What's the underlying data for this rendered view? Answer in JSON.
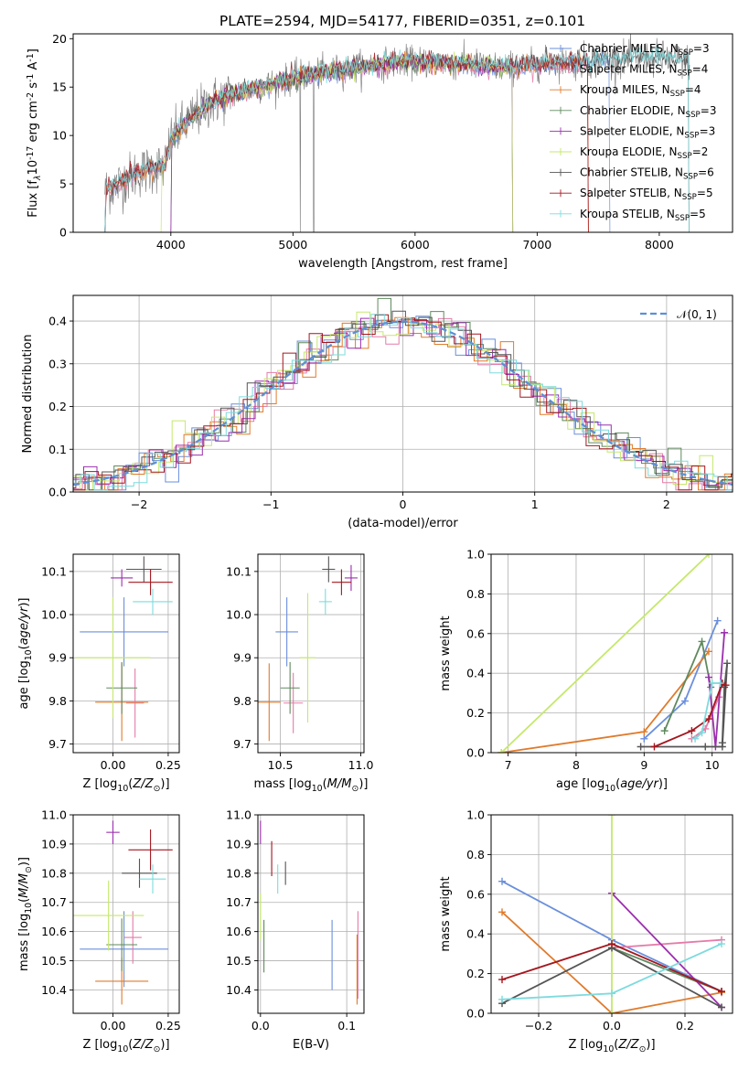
{
  "figure": {
    "title": "PLATE=2594, MJD=54177, FIBERID=0351, z=0.101"
  },
  "colors": {
    "Chabrier MILES": "#6a8fdc",
    "Salpeter MILES": "#e57ba8",
    "Kroupa MILES": "#e07b2c",
    "Chabrier ELODIE": "#5f8a5f",
    "Salpeter ELODIE": "#9b2fae",
    "Kroupa ELODIE": "#c5e86c",
    "Chabrier STELIB": "#555555",
    "Salpeter STELIB": "#a3171f",
    "Kroupa STELIB": "#7ddbde",
    "data": "#777777",
    "normal": "#5b8fd6"
  },
  "chart_data": [
    {
      "id": "spectrum",
      "type": "line",
      "xlabel": "wavelength [Angstrom, rest frame]",
      "ylabel": "Flux [f_λ10^{-17} erg cm^{-2} s^{-1} A^{-1}]",
      "xlim": [
        3200,
        8600
      ],
      "ylim": [
        0,
        20.5
      ],
      "xticks": [
        4000,
        5000,
        6000,
        7000,
        8000
      ],
      "yticks": [
        0,
        5,
        10,
        15,
        20
      ],
      "legend_position": "top-right",
      "continuum": {
        "x": [
          3460,
          3550,
          3700,
          3850,
          3950,
          4000,
          4100,
          4300,
          4500,
          4700,
          4900,
          5100,
          5300,
          5500,
          5700,
          5900,
          6100,
          6300,
          6500,
          6700,
          6900,
          7100,
          7300,
          7500,
          7700,
          7900,
          8100,
          8250
        ],
        "y": [
          4.3,
          4.8,
          6.0,
          6.6,
          6.8,
          9.5,
          11.0,
          13.2,
          14.3,
          14.9,
          15.6,
          16.2,
          16.6,
          17.0,
          17.4,
          17.6,
          17.6,
          17.4,
          17.3,
          17.0,
          17.2,
          17.5,
          17.6,
          17.8,
          17.9,
          18.0,
          17.9,
          17.6
        ]
      },
      "series": [
        {
          "name": "Chabrier MILES",
          "nssp": "3",
          "x_range": [
            3460,
            7600
          ]
        },
        {
          "name": "Salpeter MILES",
          "nssp": "4",
          "x_range": [
            3460,
            7420
          ]
        },
        {
          "name": "Kroupa MILES",
          "nssp": "4",
          "x_range": [
            3460,
            7420
          ]
        },
        {
          "name": "Chabrier ELODIE",
          "nssp": "3",
          "x_range": [
            4000,
            6800
          ]
        },
        {
          "name": "Salpeter ELODIE",
          "nssp": "3",
          "x_range": [
            4000,
            6800
          ]
        },
        {
          "name": "Kroupa ELODIE",
          "nssp": "2",
          "x_range": [
            3920,
            6800
          ]
        },
        {
          "name": "Chabrier STELIB",
          "nssp": "6",
          "x_range": [
            3460,
            8250
          ]
        },
        {
          "name": "Salpeter STELIB",
          "nssp": "5",
          "x_range": [
            3460,
            7420
          ]
        },
        {
          "name": "Kroupa STELIB",
          "nssp": "5",
          "x_range": [
            3460,
            8250
          ]
        }
      ]
    },
    {
      "id": "residuals",
      "type": "line",
      "xlabel": "(data-model)/error",
      "ylabel": "Normed distribution",
      "xlim": [
        -2.5,
        2.5
      ],
      "ylim": [
        0,
        0.46
      ],
      "xticks": [
        -2,
        -1,
        0,
        1,
        2
      ],
      "yticks": [
        0.0,
        0.1,
        0.2,
        0.3,
        0.4
      ],
      "grid": true,
      "bin_width": 0.1,
      "legend_position": "top-right",
      "legend": [
        {
          "label": "𝒩(0, 1)",
          "style": "dashed"
        }
      ]
    },
    {
      "id": "age-vs-Z",
      "type": "scatter",
      "xlabel": "Z [log10(Z/Z☉)]",
      "ylabel": "age  [log10(age/yr)]",
      "xlim": [
        -0.18,
        0.3
      ],
      "ylim": [
        9.68,
        10.14
      ],
      "xticks": [
        0.0,
        0.25
      ],
      "yticks": [
        9.7,
        9.8,
        9.9,
        10.0,
        10.1
      ],
      "grid": true,
      "points": [
        {
          "name": "Chabrier MILES",
          "x": 0.05,
          "y": 9.96,
          "xerr": 0.2,
          "yerr": 0.08
        },
        {
          "name": "Salpeter MILES",
          "x": 0.1,
          "y": 9.795,
          "xerr": 0.04,
          "yerr": 0.08
        },
        {
          "name": "Kroupa MILES",
          "x": 0.04,
          "y": 9.797,
          "xerr": 0.12,
          "yerr": 0.09
        },
        {
          "name": "Chabrier ELODIE",
          "x": 0.04,
          "y": 9.83,
          "xerr": 0.07,
          "yerr": 0.06
        },
        {
          "name": "Salpeter ELODIE",
          "x": 0.04,
          "y": 10.085,
          "xerr": 0.05,
          "yerr": 0.02
        },
        {
          "name": "Kroupa ELODIE",
          "x": 0.0,
          "y": 9.9,
          "xerr": 0.17,
          "yerr": 0.14
        },
        {
          "name": "Chabrier STELIB",
          "x": 0.14,
          "y": 10.105,
          "xerr": 0.08,
          "yerr": 0.03
        },
        {
          "name": "Salpeter STELIB",
          "x": 0.17,
          "y": 10.075,
          "xerr": 0.1,
          "yerr": 0.03
        },
        {
          "name": "Kroupa STELIB",
          "x": 0.18,
          "y": 10.03,
          "xerr": 0.09,
          "yerr": 0.03
        }
      ]
    },
    {
      "id": "age-vs-mass",
      "type": "scatter",
      "xlabel": "mass [log10(M/M☉)]",
      "ylabel": "",
      "xlim": [
        10.36,
        11.02
      ],
      "ylim": [
        9.68,
        10.14
      ],
      "xticks": [
        10.5,
        11.0
      ],
      "yticks": [
        9.7,
        9.8,
        9.9,
        10.0,
        10.1
      ],
      "grid": true,
      "points": [
        {
          "name": "Chabrier MILES",
          "x": 10.54,
          "y": 9.96,
          "xerr": 0.07,
          "yerr": 0.08
        },
        {
          "name": "Salpeter MILES",
          "x": 10.58,
          "y": 9.795,
          "xerr": 0.06,
          "yerr": 0.07
        },
        {
          "name": "Kroupa MILES",
          "x": 10.43,
          "y": 9.797,
          "xerr": 0.07,
          "yerr": 0.09
        },
        {
          "name": "Chabrier ELODIE",
          "x": 10.56,
          "y": 9.83,
          "xerr": 0.06,
          "yerr": 0.06
        },
        {
          "name": "Salpeter ELODIE",
          "x": 10.94,
          "y": 10.085,
          "xerr": 0.04,
          "yerr": 0.03
        },
        {
          "name": "Kroupa ELODIE",
          "x": 10.67,
          "y": 9.9,
          "xerr": 0.05,
          "yerr": 0.15
        },
        {
          "name": "Chabrier STELIB",
          "x": 10.8,
          "y": 10.105,
          "xerr": 0.04,
          "yerr": 0.03
        },
        {
          "name": "Salpeter STELIB",
          "x": 10.88,
          "y": 10.075,
          "xerr": 0.06,
          "yerr": 0.03
        },
        {
          "name": "Kroupa STELIB",
          "x": 10.78,
          "y": 10.03,
          "xerr": 0.04,
          "yerr": 0.03
        }
      ]
    },
    {
      "id": "weight-vs-age",
      "type": "line",
      "xlabel": "age  [log10(age/yr)]",
      "ylabel": "mass weight",
      "xlim": [
        6.75,
        10.3
      ],
      "ylim": [
        0,
        1.0
      ],
      "xticks": [
        7,
        8,
        9,
        10
      ],
      "yticks": [
        0.0,
        0.2,
        0.4,
        0.6,
        0.8,
        1.0
      ],
      "grid": true,
      "series": [
        {
          "name": "Chabrier MILES",
          "x": [
            9.0,
            9.6,
            10.08
          ],
          "y": [
            0.07,
            0.26,
            0.665
          ]
        },
        {
          "name": "Salpeter MILES",
          "x": [
            9.7,
            9.9,
            10.1,
            10.15
          ],
          "y": [
            0.07,
            0.12,
            0.28,
            0.35
          ]
        },
        {
          "name": "Kroupa MILES",
          "x": [
            6.9,
            9.0,
            9.95
          ],
          "y": [
            0.0,
            0.105,
            0.51
          ]
        },
        {
          "name": "Chabrier ELODIE",
          "x": [
            9.3,
            9.85,
            9.98
          ],
          "y": [
            0.11,
            0.56,
            0.33
          ]
        },
        {
          "name": "Salpeter ELODIE",
          "x": [
            9.95,
            10.05,
            10.18
          ],
          "y": [
            0.38,
            0.03,
            0.605
          ]
        },
        {
          "name": "Kroupa ELODIE",
          "x": [
            6.9,
            9.95
          ],
          "y": [
            0.0,
            1.0
          ]
        },
        {
          "name": "Chabrier STELIB",
          "x": [
            8.95,
            9.9,
            10.15,
            10.22,
            10.18,
            10.15
          ],
          "y": [
            0.03,
            0.03,
            0.03,
            0.45,
            0.33,
            0.05
          ]
        },
        {
          "name": "Salpeter STELIB",
          "x": [
            9.15,
            9.7,
            9.95,
            10.15,
            10.2
          ],
          "y": [
            0.03,
            0.11,
            0.17,
            0.35,
            0.34
          ]
        },
        {
          "name": "Kroupa STELIB",
          "x": [
            9.75,
            9.85,
            10.0,
            10.12
          ],
          "y": [
            0.07,
            0.1,
            0.35,
            0.35
          ]
        }
      ]
    },
    {
      "id": "mass-vs-Z",
      "type": "scatter",
      "xlabel": "Z [log10(Z/Z☉)]",
      "ylabel": "mass [log10(M/M☉)]",
      "xlim": [
        -0.18,
        0.3
      ],
      "ylim": [
        10.32,
        11.0
      ],
      "xticks": [
        0.0,
        0.25
      ],
      "yticks": [
        10.4,
        10.5,
        10.6,
        10.7,
        10.8,
        10.9,
        11.0
      ],
      "grid": true,
      "points": [
        {
          "name": "Chabrier MILES",
          "x": 0.05,
          "y": 10.54,
          "xerr": 0.2,
          "yerr": 0.13
        },
        {
          "name": "Salpeter MILES",
          "x": 0.09,
          "y": 10.58,
          "xerr": 0.04,
          "yerr": 0.09
        },
        {
          "name": "Kroupa MILES",
          "x": 0.04,
          "y": 10.43,
          "xerr": 0.12,
          "yerr": 0.08
        },
        {
          "name": "Chabrier ELODIE",
          "x": 0.04,
          "y": 10.555,
          "xerr": 0.07,
          "yerr": 0.09
        },
        {
          "name": "Salpeter ELODIE",
          "x": 0.0,
          "y": 10.94,
          "xerr": 0.03,
          "yerr": 0.04
        },
        {
          "name": "Kroupa ELODIE",
          "x": -0.02,
          "y": 10.655,
          "xerr": 0.16,
          "yerr": 0.12
        },
        {
          "name": "Chabrier STELIB",
          "x": 0.12,
          "y": 10.8,
          "xerr": 0.08,
          "yerr": 0.05
        },
        {
          "name": "Salpeter STELIB",
          "x": 0.17,
          "y": 10.88,
          "xerr": 0.1,
          "yerr": 0.07
        },
        {
          "name": "Kroupa STELIB",
          "x": 0.18,
          "y": 10.78,
          "xerr": 0.06,
          "yerr": 0.05
        }
      ]
    },
    {
      "id": "mass-vs-ebv",
      "type": "scatter",
      "xlabel": "E(B-V)",
      "ylabel": "",
      "xlim": [
        -0.003,
        0.12
      ],
      "ylim": [
        10.32,
        11.0
      ],
      "xticks": [
        0.0,
        0.1
      ],
      "yticks": [
        10.4,
        10.5,
        10.6,
        10.7,
        10.8,
        10.9,
        11.0
      ],
      "grid": true,
      "points": [
        {
          "name": "Chabrier MILES",
          "x": 0.083,
          "y": 10.52,
          "yerr": 0.12
        },
        {
          "name": "Salpeter MILES",
          "x": 0.113,
          "y": 10.52,
          "yerr": 0.15
        },
        {
          "name": "Kroupa MILES",
          "x": 0.112,
          "y": 10.47,
          "yerr": 0.12
        },
        {
          "name": "Chabrier ELODIE",
          "x": 0.004,
          "y": 10.55,
          "yerr": 0.09
        },
        {
          "name": "Salpeter ELODIE",
          "x": 0.0,
          "y": 10.94,
          "yerr": 0.04
        },
        {
          "name": "Kroupa ELODIE",
          "x": 0.0,
          "y": 10.65,
          "yerr": 0.08
        },
        {
          "name": "Chabrier STELIB",
          "x": 0.029,
          "y": 10.8,
          "yerr": 0.04
        },
        {
          "name": "Salpeter STELIB",
          "x": 0.013,
          "y": 10.85,
          "yerr": 0.06
        },
        {
          "name": "Kroupa STELIB",
          "x": 0.02,
          "y": 10.78,
          "yerr": 0.05
        }
      ]
    },
    {
      "id": "weight-vs-Z",
      "type": "line",
      "xlabel": "Z [log10(Z/Z☉)]",
      "ylabel": "mass weight",
      "xlim": [
        -0.33,
        0.33
      ],
      "ylim": [
        0,
        1.0
      ],
      "xticks": [
        -0.2,
        0.0,
        0.2
      ],
      "yticks": [
        0.0,
        0.2,
        0.4,
        0.6,
        0.8,
        1.0
      ],
      "grid": true,
      "series": [
        {
          "name": "Chabrier MILES",
          "x": [
            -0.3,
            0.0,
            0.3
          ],
          "y": [
            0.665,
            0.37,
            0.11
          ]
        },
        {
          "name": "Salpeter MILES",
          "x": [
            0.0,
            0.3
          ],
          "y": [
            0.33,
            0.37
          ]
        },
        {
          "name": "Kroupa MILES",
          "x": [
            -0.3,
            0.0,
            0.3
          ],
          "y": [
            0.51,
            0.0,
            0.105
          ]
        },
        {
          "name": "Chabrier ELODIE",
          "x": [
            0.0,
            0.3
          ],
          "y": [
            0.33,
            0.11
          ]
        },
        {
          "name": "Salpeter ELODIE",
          "x": [
            0.0,
            0.3
          ],
          "y": [
            0.605,
            0.03
          ]
        },
        {
          "name": "Kroupa ELODIE",
          "x": [
            0.0,
            0.0
          ],
          "y": [
            0.0,
            1.0
          ]
        },
        {
          "name": "Chabrier STELIB",
          "x": [
            -0.3,
            0.0,
            0.3
          ],
          "y": [
            0.05,
            0.33,
            0.03
          ]
        },
        {
          "name": "Salpeter STELIB",
          "x": [
            -0.3,
            0.0,
            0.3
          ],
          "y": [
            0.17,
            0.35,
            0.11
          ]
        },
        {
          "name": "Kroupa STELIB",
          "x": [
            -0.3,
            0.0,
            0.3
          ],
          "y": [
            0.07,
            0.1,
            0.35
          ]
        }
      ]
    }
  ]
}
